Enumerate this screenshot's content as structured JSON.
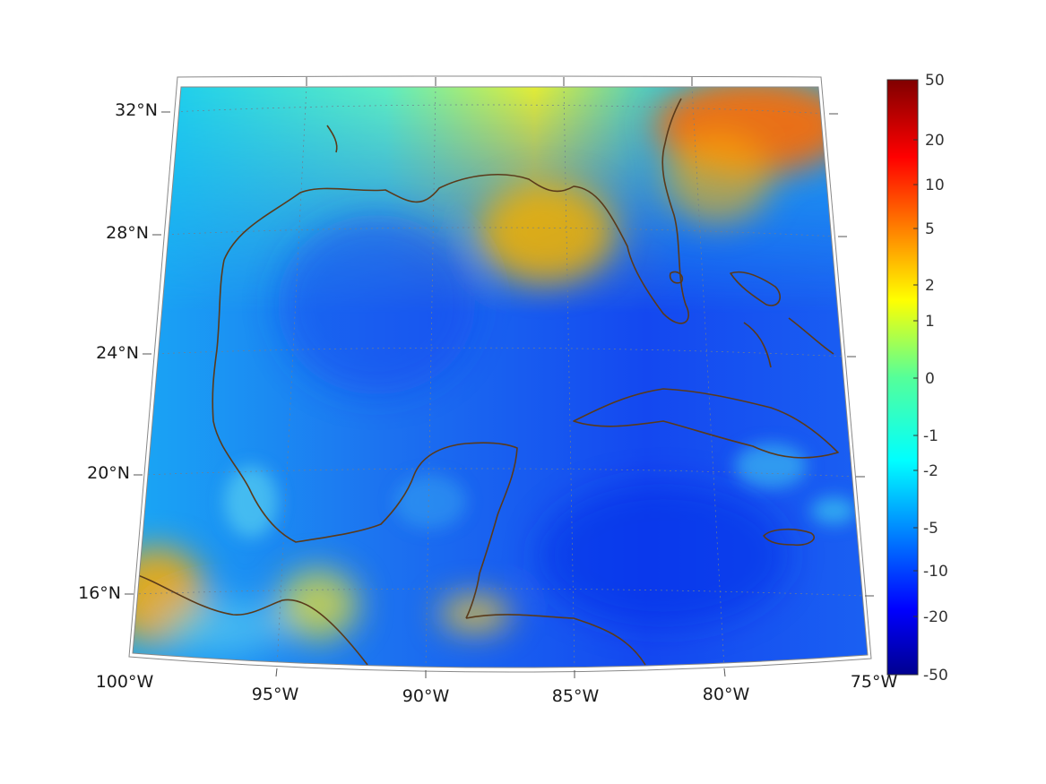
{
  "map": {
    "projection": "conic",
    "extent": {
      "lon": [
        -100,
        -75
      ],
      "lat": [
        14,
        33
      ]
    },
    "graticule": {
      "dashed": true,
      "color": "#6f7f8f"
    },
    "coastline_color": "#5a3a1a",
    "lon_labels": [
      "100°W",
      "95°W",
      "90°W",
      "85°W",
      "80°W",
      "75°W"
    ],
    "lat_labels": [
      "32°N",
      "28°N",
      "24°N",
      "20°N",
      "16°N"
    ]
  },
  "colorbar": {
    "colormap": "jet",
    "tick_labels": [
      "50",
      "20",
      "10",
      "5",
      "2",
      "1",
      "0",
      "-1",
      "-2",
      "-5",
      "-10",
      "-20",
      "-50"
    ]
  }
}
